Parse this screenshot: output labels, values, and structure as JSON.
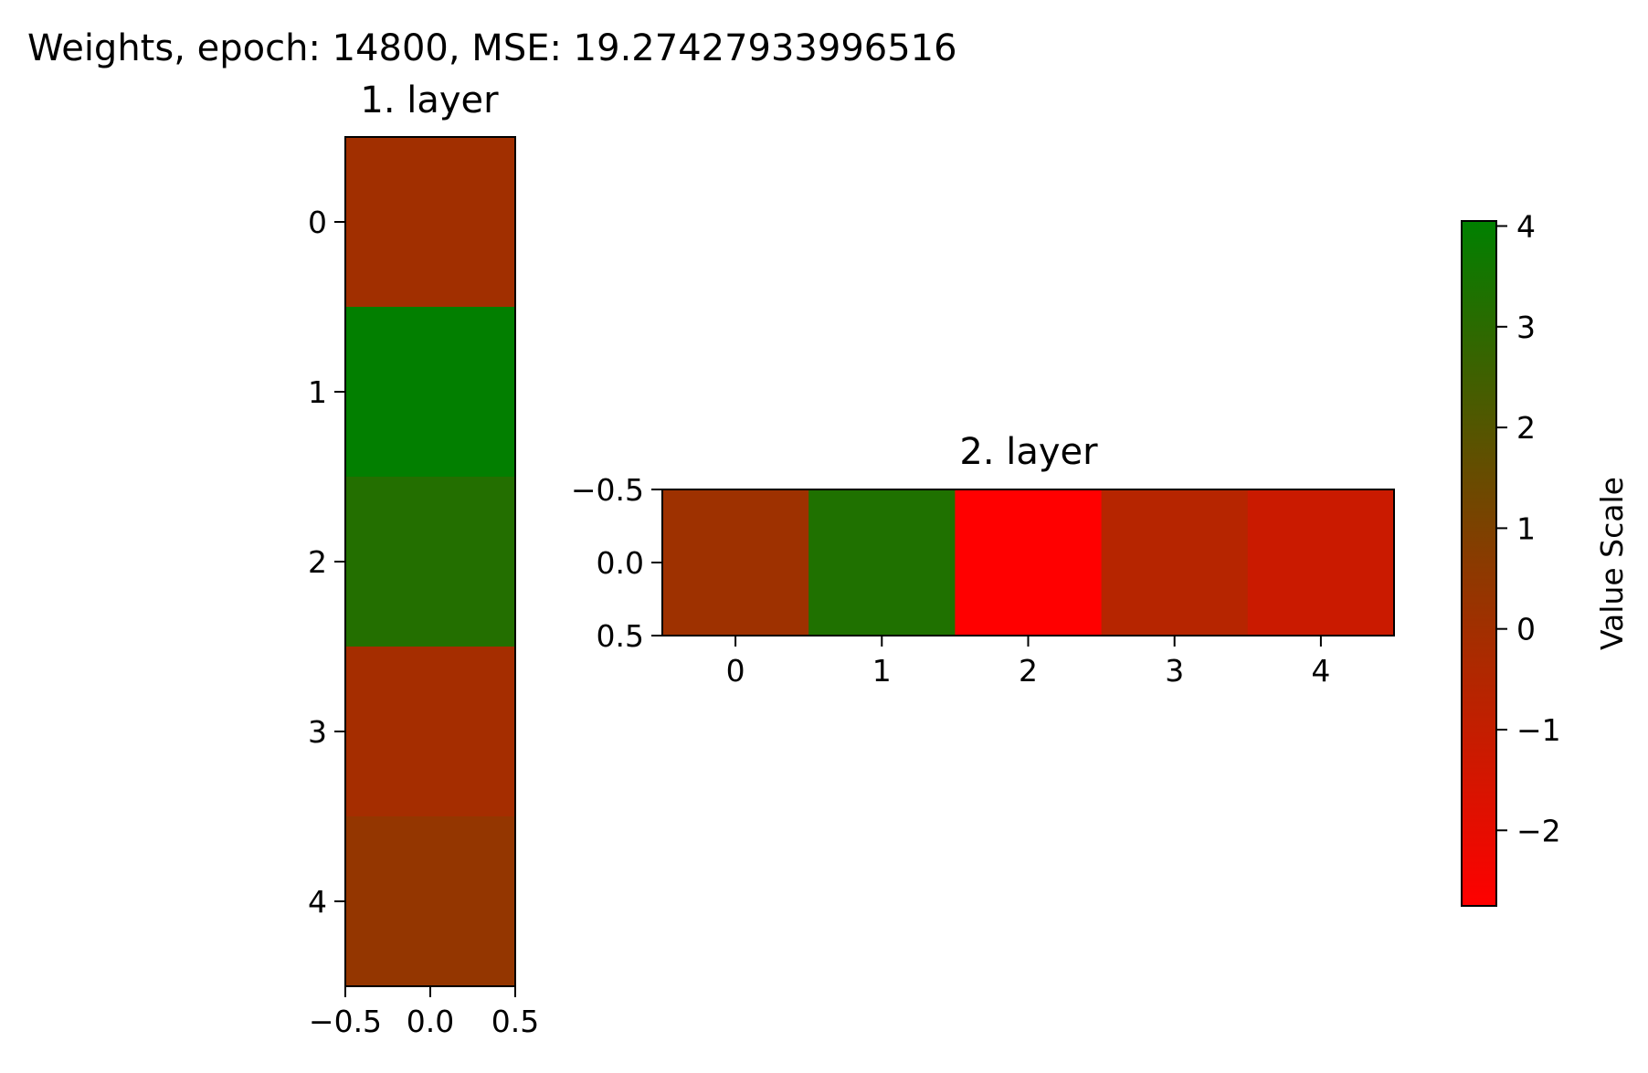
{
  "suptitle": "Weights, epoch: 14800, MSE: 19.27427933996516",
  "chart_data": [
    {
      "type": "heatmap",
      "title": "1. layer",
      "rows": 5,
      "cols": 1,
      "values": [
        [
          0.0
        ],
        [
          4.0
        ],
        [
          3.2
        ],
        [
          -0.1
        ],
        [
          0.4
        ]
      ],
      "x_ticks": [
        "−0.5",
        "0.0",
        "0.5"
      ],
      "y_ticks": [
        "0",
        "1",
        "2",
        "3",
        "4"
      ],
      "xlim": [
        -0.5,
        0.5
      ],
      "ylim": [
        4.5,
        -0.5
      ]
    },
    {
      "type": "heatmap",
      "title": "2. layer",
      "rows": 1,
      "cols": 5,
      "values": [
        [
          0.1,
          3.3,
          -2.75,
          -0.6,
          -1.2
        ]
      ],
      "x_ticks": [
        "0",
        "1",
        "2",
        "3",
        "4"
      ],
      "y_ticks": [
        "−0.5",
        "0.0",
        "0.5"
      ],
      "xlim": [
        -0.5,
        4.5
      ],
      "ylim": [
        0.5,
        -0.5
      ]
    }
  ],
  "colorbar": {
    "label": "Value Scale",
    "min": -2.75,
    "max": 4.05,
    "ticks": [
      4,
      3,
      2,
      1,
      0,
      -1,
      -2
    ],
    "tick_labels": [
      "4",
      "3",
      "2",
      "1",
      "0",
      "−1",
      "−2"
    ],
    "colors": [
      "#ff0000",
      "#8b3a00",
      "#008000"
    ]
  }
}
